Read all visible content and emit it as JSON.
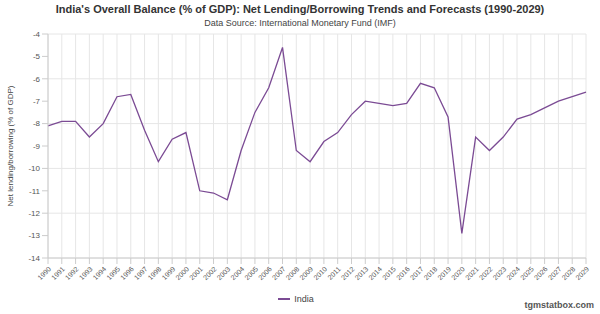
{
  "chart_data": {
    "type": "line",
    "title": "India's Overall Balance (% of GDP): Net Lending/Borrowing Trends and Forecasts (1990-2029)",
    "subtitle": "Data Source: International Monetary Fund (IMF)",
    "y_label": "Net lending/borrowing (% of GDP)",
    "watermark": "tgmstatbox.com",
    "categories": [
      "1990",
      "1991",
      "1992",
      "1993",
      "1994",
      "1995",
      "1996",
      "1997",
      "1998",
      "1999",
      "2000",
      "2001",
      "2002",
      "2003",
      "2004",
      "2005",
      "2006",
      "2007",
      "2008",
      "2009",
      "2010",
      "2011",
      "2012",
      "2013",
      "2014",
      "2015",
      "2016",
      "2017",
      "2018",
      "2019",
      "2020",
      "2021",
      "2022",
      "2023",
      "2024",
      "2025",
      "2026",
      "2027",
      "2028",
      "2029"
    ],
    "series": [
      {
        "name": "India",
        "color": "#7b4b94",
        "values": [
          -8.1,
          -7.9,
          -7.9,
          -8.6,
          -8.0,
          -6.8,
          -6.7,
          -8.3,
          -9.7,
          -8.7,
          -8.4,
          -11.0,
          -11.1,
          -11.4,
          -9.2,
          -7.5,
          -6.4,
          -4.6,
          -9.2,
          -9.7,
          -8.8,
          -8.4,
          -7.6,
          -7.0,
          -7.1,
          -7.2,
          -7.1,
          -6.2,
          -6.4,
          -7.7,
          -12.9,
          -8.6,
          -9.2,
          -8.6,
          -7.8,
          -7.6,
          -7.3,
          -7.0,
          -6.8,
          -6.6
        ]
      }
    ],
    "ylim": [
      -14,
      -4
    ],
    "yticks": [
      -14,
      -13,
      -12,
      -11,
      -10,
      -9,
      -8,
      -7,
      -6,
      -5,
      -4
    ],
    "grid": true,
    "legend": "bottom"
  }
}
